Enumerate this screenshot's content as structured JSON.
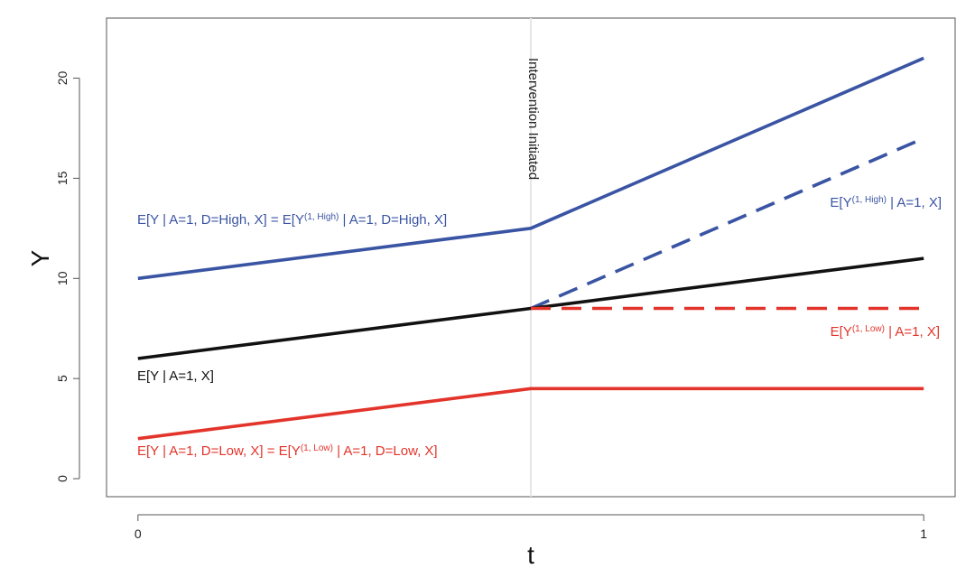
{
  "chart_data": {
    "type": "line",
    "title": "",
    "xlabel": "t",
    "ylabel": "Y",
    "xlim": [
      -0.04,
      1.04
    ],
    "ylim": [
      -0.9,
      23.0
    ],
    "x_ticks": [
      0,
      1
    ],
    "y_ticks": [
      0,
      5,
      10,
      15,
      20
    ],
    "grid": false,
    "intervention": {
      "x": 0.5,
      "label": "Intervention Initiated",
      "color": "#e6e6e6"
    },
    "series": [
      {
        "key": "high",
        "x": [
          0,
          0.5,
          1
        ],
        "y": [
          10,
          12.5,
          21
        ],
        "color": "#3a54a4",
        "dash": false
      },
      {
        "key": "high_cf",
        "x": [
          0.5,
          1
        ],
        "y": [
          8.5,
          17
        ],
        "color": "#3a54a4",
        "dash": true
      },
      {
        "key": "avg",
        "x": [
          0,
          0.5,
          1
        ],
        "y": [
          6,
          8.5,
          11
        ],
        "color": "#111111",
        "dash": false
      },
      {
        "key": "low_cf",
        "x": [
          0.5,
          1
        ],
        "y": [
          8.5,
          8.5
        ],
        "color": "#e3342b",
        "dash": true
      },
      {
        "key": "low",
        "x": [
          0,
          0.5,
          1
        ],
        "y": [
          2,
          4.5,
          4.5
        ],
        "color": "#e3342b",
        "dash": false
      }
    ],
    "annotations": [
      {
        "key": "high",
        "color": "#3a54a4",
        "parts": [
          {
            "text": "E[Y | A=1, D=High, X] = E[Y"
          },
          {
            "text": "(1, High)",
            "sup": true
          },
          {
            "text": " | A=1, D=High, X]"
          }
        ]
      },
      {
        "key": "high_cf",
        "color": "#3a54a4",
        "parts": [
          {
            "text": "E[Y"
          },
          {
            "text": "(1, High)",
            "sup": true
          },
          {
            "text": " | A=1, X]"
          }
        ]
      },
      {
        "key": "avg",
        "color": "#111111",
        "parts": [
          {
            "text": "E[Y | A=1, X]"
          }
        ]
      },
      {
        "key": "low_cf",
        "color": "#e3342b",
        "parts": [
          {
            "text": "E[Y"
          },
          {
            "text": "(1, Low)",
            "sup": true
          },
          {
            "text": " | A=1, X]"
          }
        ]
      },
      {
        "key": "low",
        "color": "#e3342b",
        "parts": [
          {
            "text": "E[Y | A=1, D=Low, X] = E[Y"
          },
          {
            "text": "(1, Low)",
            "sup": true
          },
          {
            "text": " | A=1, D=Low, X]"
          }
        ]
      }
    ]
  }
}
